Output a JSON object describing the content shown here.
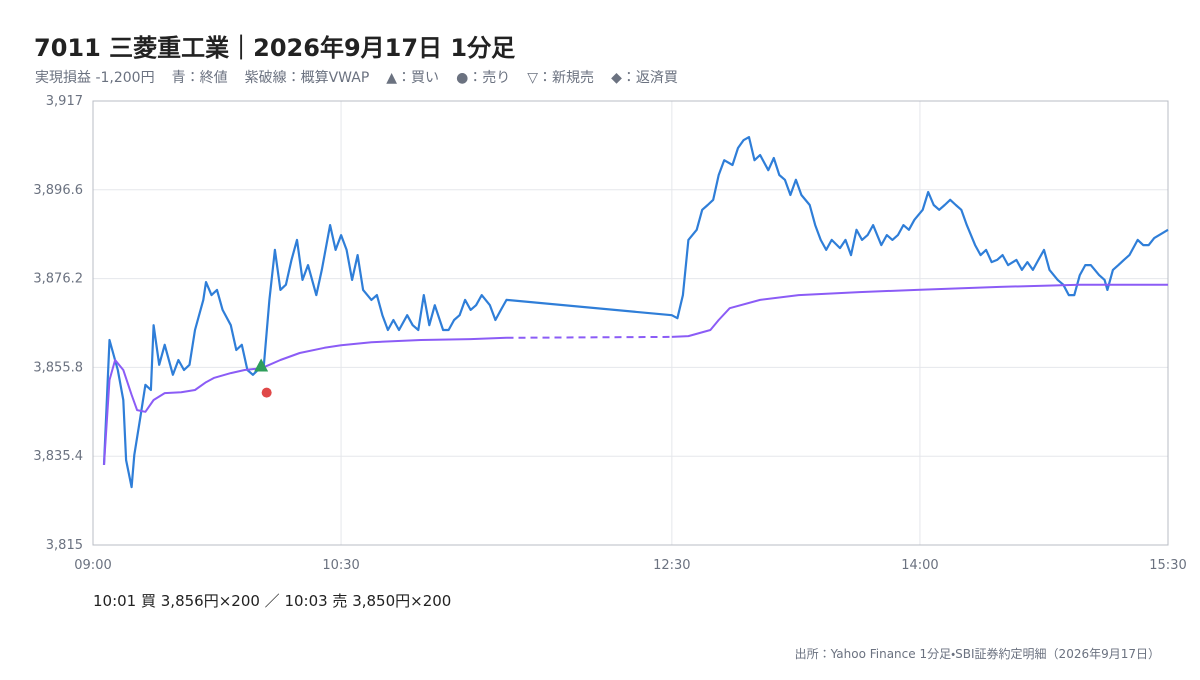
{
  "chart_data": {
    "type": "line",
    "title": "7011 三菱重工業｜2026年9月17日 1分足",
    "pnl": "実現損益 -1,200円",
    "annotation": "10:01 買 3,856円×200 ／ 10:03 売 3,850円×200",
    "source": "出所：Yahoo Finance 1分足・SBI証券約定明細（2026年9月17日）",
    "xlim": [
      "09:00",
      "15:30"
    ],
    "xticks": [
      "09:00",
      "10:30",
      "12:30",
      "14:00",
      "15:30"
    ],
    "ylim": [
      3815,
      3917
    ],
    "yticks": [
      {
        "value": 3815,
        "label": "3,815"
      },
      {
        "value": 3835.4,
        "label": "3,835.4"
      },
      {
        "value": 3855.8,
        "label": "3,855.8"
      },
      {
        "value": 3876.2,
        "label": "3,876.2"
      },
      {
        "value": 3896.6,
        "label": "3,896.6"
      },
      {
        "value": 3917,
        "label": "3,917"
      }
    ],
    "grid": true,
    "series": [
      {
        "name": "青：終値",
        "color": "#2f7ed8",
        "x": [
          "09:04",
          "09:06",
          "09:09",
          "09:11",
          "09:12",
          "09:14",
          "09:15",
          "09:17",
          "09:19",
          "09:21",
          "09:22",
          "09:24",
          "09:26",
          "09:29",
          "09:31",
          "09:33",
          "09:35",
          "09:37",
          "09:40",
          "09:41",
          "09:43",
          "09:45",
          "09:47",
          "09:50",
          "09:52",
          "09:54",
          "09:56",
          "09:58",
          "10:01",
          "10:02",
          "10:04",
          "10:06",
          "10:08",
          "10:10",
          "10:12",
          "10:14",
          "10:16",
          "10:18",
          "10:21",
          "10:23",
          "10:26",
          "10:28",
          "10:30",
          "10:32",
          "10:34",
          "10:36",
          "10:38",
          "10:41",
          "10:43",
          "10:45",
          "10:47",
          "10:49",
          "10:51",
          "10:54",
          "10:56",
          "10:58",
          "11:00",
          "11:02",
          "11:04",
          "11:07",
          "11:09",
          "11:11",
          "11:13",
          "11:15",
          "11:17",
          "11:19",
          "11:21",
          "11:24",
          "11:26",
          "11:28",
          "11:30",
          "12:30",
          "12:32",
          "12:34",
          "12:36",
          "12:39",
          "12:41",
          "12:43",
          "12:45",
          "12:47",
          "12:49",
          "12:52",
          "12:54",
          "12:56",
          "12:58",
          "13:00",
          "13:02",
          "13:05",
          "13:07",
          "13:09",
          "13:11",
          "13:13",
          "13:15",
          "13:17",
          "13:20",
          "13:22",
          "13:24",
          "13:26",
          "13:28",
          "13:31",
          "13:33",
          "13:35",
          "13:37",
          "13:39",
          "13:41",
          "13:43",
          "13:46",
          "13:48",
          "13:50",
          "13:52",
          "13:54",
          "13:56",
          "13:58",
          "14:01",
          "14:03",
          "14:05",
          "14:07",
          "14:09",
          "14:11",
          "14:13",
          "14:15",
          "14:17",
          "14:20",
          "14:22",
          "14:24",
          "14:26",
          "14:28",
          "14:30",
          "14:32",
          "14:35",
          "14:37",
          "14:39",
          "14:41",
          "14:43",
          "14:45",
          "14:47",
          "14:50",
          "14:52",
          "14:54",
          "14:56",
          "14:58",
          "15:00",
          "15:02",
          "15:05",
          "15:07",
          "15:08",
          "15:10",
          "15:12",
          "15:14",
          "15:16",
          "15:19",
          "15:21",
          "15:23",
          "15:25",
          "15:30"
        ],
        "values": [
          3833.4,
          3862.1,
          3855.2,
          3848.3,
          3834.5,
          3828.3,
          3835.7,
          3843.7,
          3851.8,
          3850.6,
          3865.5,
          3856.4,
          3861.0,
          3854.1,
          3857.5,
          3855.2,
          3856.4,
          3864.4,
          3871.3,
          3875.4,
          3872.4,
          3873.6,
          3869.0,
          3865.5,
          3859.8,
          3861.0,
          3855.2,
          3854.1,
          3855.9,
          3856.4,
          3871.3,
          3882.8,
          3873.6,
          3874.8,
          3880.5,
          3885.1,
          3875.9,
          3879.3,
          3872.4,
          3878.2,
          3888.5,
          3882.8,
          3886.2,
          3882.8,
          3875.9,
          3881.6,
          3873.6,
          3871.3,
          3872.4,
          3867.8,
          3864.4,
          3866.7,
          3864.4,
          3867.8,
          3865.5,
          3864.4,
          3872.4,
          3865.5,
          3870.1,
          3864.4,
          3864.4,
          3866.7,
          3867.8,
          3871.3,
          3869.0,
          3870.1,
          3872.4,
          3870.1,
          3866.7,
          3869.0,
          3871.3,
          3867.8,
          3867.1,
          3872.4,
          3885.1,
          3887.4,
          3892.0,
          3893.1,
          3894.3,
          3900.0,
          3903.4,
          3902.3,
          3906.2,
          3908.0,
          3908.7,
          3903.4,
          3904.6,
          3901.1,
          3903.9,
          3900.0,
          3898.9,
          3895.4,
          3898.9,
          3895.4,
          3893.1,
          3888.5,
          3885.1,
          3882.8,
          3885.1,
          3883.2,
          3885.1,
          3881.6,
          3887.4,
          3885.1,
          3886.2,
          3888.5,
          3883.9,
          3886.2,
          3885.1,
          3886.2,
          3888.5,
          3887.4,
          3889.7,
          3892.0,
          3896.1,
          3893.1,
          3892.0,
          3893.1,
          3894.3,
          3893.1,
          3892.0,
          3888.5,
          3883.9,
          3881.6,
          3882.8,
          3880.0,
          3880.5,
          3881.6,
          3879.3,
          3880.5,
          3878.2,
          3880.0,
          3878.2,
          3880.5,
          3882.8,
          3878.2,
          3875.9,
          3874.8,
          3872.4,
          3872.4,
          3877.0,
          3879.3,
          3879.3,
          3877.0,
          3875.9,
          3873.6,
          3878.2,
          3879.3,
          3880.5,
          3881.6,
          3885.1,
          3883.9,
          3883.9,
          3885.5,
          3887.4
        ]
      },
      {
        "name": "紫破線：概算VWAP",
        "color": "#8b5cf6",
        "dashed_between": [
          "11:30",
          "12:30"
        ],
        "x": [
          "09:04",
          "09:06",
          "09:08",
          "09:11",
          "09:14",
          "09:16",
          "09:19",
          "09:22",
          "09:26",
          "09:32",
          "09:37",
          "09:41",
          "09:44",
          "09:50",
          "09:55",
          "10:01",
          "10:04",
          "10:08",
          "10:15",
          "10:24",
          "10:30",
          "10:41",
          "10:59",
          "11:17",
          "11:30",
          "12:30",
          "12:36",
          "12:44",
          "12:47",
          "12:51",
          "13:02",
          "13:16",
          "13:38",
          "13:59",
          "14:29",
          "14:58",
          "15:30"
        ],
        "values": [
          3833.4,
          3852.9,
          3857.5,
          3855.2,
          3849.5,
          3846.0,
          3845.6,
          3848.3,
          3849.9,
          3850.1,
          3850.6,
          3852.4,
          3853.4,
          3854.5,
          3855.2,
          3855.6,
          3856.4,
          3857.5,
          3859.1,
          3860.3,
          3860.9,
          3861.6,
          3862.1,
          3862.3,
          3862.6,
          3862.8,
          3863.0,
          3864.4,
          3866.7,
          3869.4,
          3871.3,
          3872.4,
          3873.1,
          3873.6,
          3874.3,
          3874.8,
          3874.8
        ]
      }
    ],
    "markers": [
      {
        "x": "10:01",
        "value": 3856,
        "shape": "triangle",
        "color": "#2e9e5b"
      },
      {
        "x": "10:03",
        "value": 3850,
        "shape": "circle",
        "color": "#e04848"
      }
    ],
    "marker_legend": [
      "▲：買い",
      "●：売り",
      "▽：新規売",
      "◆：返済買"
    ]
  }
}
